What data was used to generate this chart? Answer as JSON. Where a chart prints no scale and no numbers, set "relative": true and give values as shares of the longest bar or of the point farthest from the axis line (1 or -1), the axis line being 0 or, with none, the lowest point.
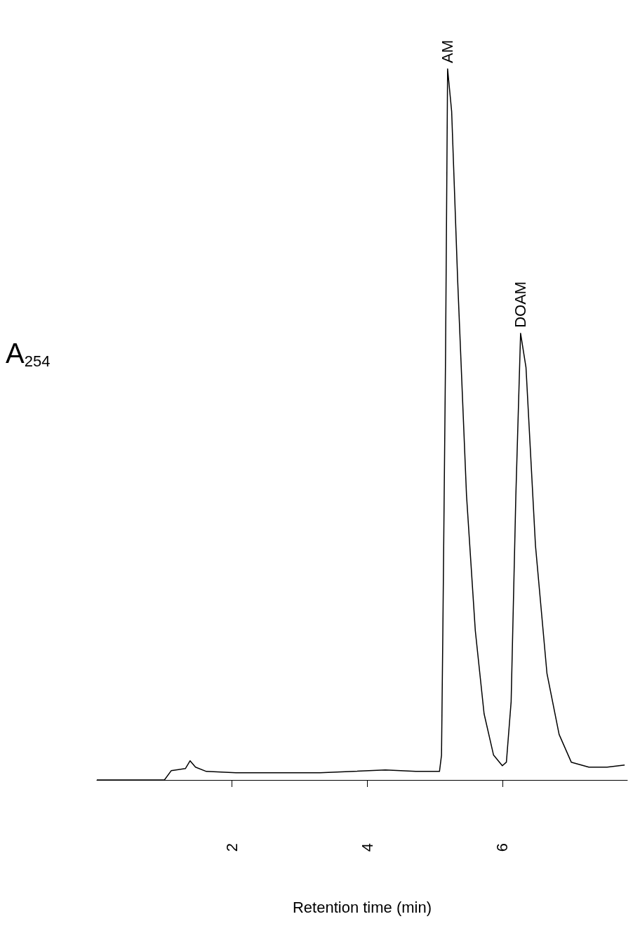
{
  "chart_data": {
    "type": "line",
    "relative": true,
    "xlabel": "Retention time (min)",
    "ylabel": "A$_{254}$",
    "xlim": [
      0,
      7.85
    ],
    "xticks": [
      2,
      4,
      6
    ],
    "grid": false,
    "marker": "none",
    "line_style": "solid",
    "series": [
      {
        "color": "#000000",
        "x": [
          0,
          1.0,
          1.1,
          1.31,
          1.38,
          1.46,
          1.62,
          2.06,
          3.3,
          4.27,
          4.72,
          5.07,
          5.1,
          5.12,
          5.16,
          5.19,
          5.25,
          5.34,
          5.47,
          5.6,
          5.73,
          5.87,
          6.0,
          6.06,
          6.13,
          6.2,
          6.27,
          6.35,
          6.49,
          6.66,
          6.84,
          7.02,
          7.28,
          7.55,
          7.81
        ],
        "values": [
          0,
          0,
          0.013,
          0.016,
          0.027,
          0.018,
          0.012,
          0.01,
          0.01,
          0.014,
          0.012,
          0.012,
          0.035,
          0.21,
          0.6,
          1.0,
          0.94,
          0.7,
          0.4,
          0.21,
          0.093,
          0.035,
          0.02,
          0.025,
          0.11,
          0.4,
          0.628,
          0.58,
          0.33,
          0.15,
          0.064,
          0.025,
          0.018,
          0.018,
          0.021
        ]
      }
    ],
    "annotations": [
      {
        "text": "AM",
        "x": 5.19,
        "y": 1.0
      },
      {
        "text": "DOAM",
        "x": 6.27,
        "y": 0.628
      }
    ]
  }
}
